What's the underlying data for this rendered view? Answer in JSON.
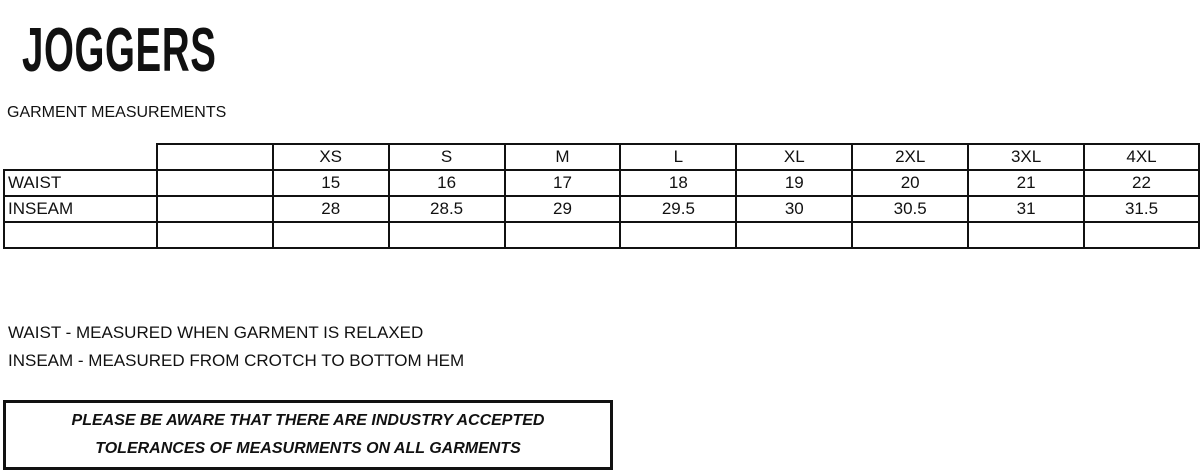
{
  "title": "JOGGERS",
  "subtitle": "GARMENT MEASUREMENTS",
  "table": {
    "sizes": [
      "XS",
      "S",
      "M",
      "L",
      "XL",
      "2XL",
      "3XL",
      "4XL"
    ],
    "rows": [
      {
        "label": "WAIST",
        "values": [
          "15",
          "16",
          "17",
          "18",
          "19",
          "20",
          "21",
          "22"
        ]
      },
      {
        "label": "INSEAM",
        "values": [
          "28",
          "28.5",
          "29",
          "29.5",
          "30",
          "30.5",
          "31",
          "31.5"
        ]
      },
      {
        "label": "",
        "values": [
          "",
          "",
          "",
          "",
          "",
          "",
          "",
          ""
        ]
      }
    ]
  },
  "notes": [
    "WAIST - MEASURED WHEN GARMENT IS RELAXED",
    "INSEAM - MEASURED FROM CROTCH TO BOTTOM HEM"
  ],
  "disclaimer": [
    "PLEASE BE AWARE THAT THERE ARE INDUSTRY ACCEPTED",
    "TOLERANCES OF MEASURMENTS ON ALL GARMENTS"
  ]
}
